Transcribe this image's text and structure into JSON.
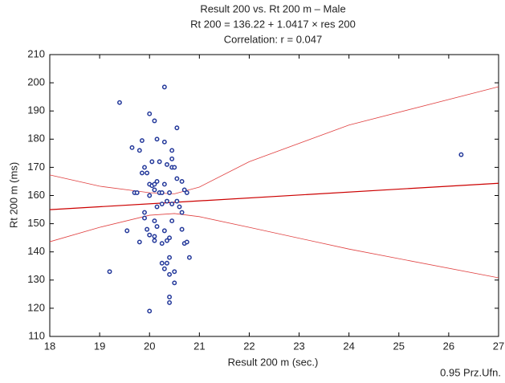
{
  "chart_data": {
    "type": "scatter",
    "title": "Result 200 vs. Rt 200 m – Male",
    "subtitle": "Rt 200 = 136.22 + 1.0417 × res 200",
    "annotation": "Correlation: r = 0.047",
    "note": "0.95 Prz.Ufn.",
    "x_label": "Result 200 m (sec.)",
    "y_label": "Rt 200 m (ms)",
    "xlim": [
      18,
      27
    ],
    "ylim": [
      110,
      210
    ],
    "xticks": [
      18,
      19,
      20,
      21,
      22,
      23,
      24,
      25,
      26,
      27
    ],
    "yticks": [
      110,
      120,
      130,
      140,
      150,
      160,
      170,
      180,
      190,
      200,
      210
    ],
    "series": [
      {
        "type": "scatter",
        "color": "#23389a",
        "x": [
          19.2,
          19.4,
          19.55,
          19.65,
          19.7,
          19.75,
          19.8,
          19.8,
          19.85,
          19.85,
          19.9,
          19.9,
          19.9,
          19.95,
          19.95,
          20.0,
          20.0,
          20.0,
          20.0,
          20.05,
          20.05,
          20.0,
          20.1,
          20.1,
          20.1,
          20.1,
          20.1,
          20.1,
          20.15,
          20.15,
          20.15,
          20.15,
          20.2,
          20.2,
          20.25,
          20.25,
          20.25,
          20.25,
          20.3,
          20.3,
          20.3,
          20.3,
          20.3,
          20.35,
          20.35,
          20.35,
          20.35,
          20.4,
          20.4,
          20.4,
          20.4,
          20.4,
          20.4,
          20.45,
          20.45,
          20.45,
          20.45,
          20.45,
          20.5,
          20.5,
          20.5,
          20.55,
          20.55,
          20.55,
          20.6,
          20.65,
          20.65,
          20.65,
          20.7,
          20.7,
          20.75,
          20.75,
          20.8,
          26.25
        ],
        "values": [
          133,
          193,
          147.5,
          177,
          161,
          161,
          143.5,
          176,
          179.5,
          168,
          154,
          170,
          152,
          168,
          148,
          160,
          146,
          164,
          189,
          172,
          163.5,
          119,
          186.5,
          164,
          162,
          145.5,
          144,
          151,
          180,
          165,
          149,
          156,
          172,
          161,
          143,
          136,
          161,
          157,
          179,
          198.5,
          147.5,
          134,
          164,
          171,
          158,
          136,
          144,
          132,
          124,
          122,
          138,
          145,
          161,
          176,
          170,
          173,
          157,
          151,
          133,
          129,
          170,
          166,
          158,
          184,
          156,
          154,
          165,
          148,
          143,
          162,
          161,
          143.5,
          138,
          174.5
        ]
      },
      {
        "type": "line",
        "color": "#cc0000",
        "width": 1.2,
        "x": [
          18,
          27
        ],
        "values": [
          154.97,
          164.35
        ]
      },
      {
        "type": "line",
        "color": "#e04040",
        "width": 0.8,
        "x": [
          18,
          19,
          20,
          20.5,
          21,
          22,
          24,
          27
        ],
        "values": [
          167.3,
          163.3,
          161,
          160.6,
          163,
          172,
          185,
          198.6
        ]
      },
      {
        "type": "line",
        "color": "#e04040",
        "width": 0.8,
        "x": [
          18,
          19,
          20,
          20.5,
          21,
          22,
          24,
          27
        ],
        "values": [
          143.6,
          148.7,
          153,
          153.6,
          152.5,
          148.7,
          141,
          130.8
        ]
      }
    ]
  }
}
